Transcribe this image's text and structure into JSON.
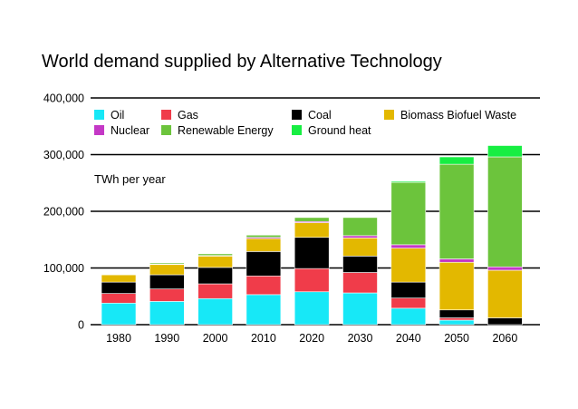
{
  "chart_data": {
    "type": "stacked-bar",
    "title": "World demand supplied by Alternative Technology",
    "unit_label": "TWh per year",
    "xlabel": "",
    "ylabel": "",
    "ylim": [
      0,
      400000
    ],
    "y_ticks": [
      0,
      100000,
      200000,
      300000,
      400000
    ],
    "y_tick_labels": [
      "0",
      "100,000",
      "200,000",
      "300,000",
      "400,000"
    ],
    "categories": [
      "1980",
      "1990",
      "2000",
      "2010",
      "2020",
      "2030",
      "2040",
      "2050",
      "2060"
    ],
    "series": [
      {
        "name": "Oil",
        "color": "#17e8f7",
        "values": [
          38000,
          41000,
          46000,
          53000,
          58000,
          56000,
          29000,
          8000,
          0
        ]
      },
      {
        "name": "Gas",
        "color": "#f03c4a",
        "values": [
          17000,
          22000,
          26000,
          33000,
          41000,
          36000,
          18000,
          4000,
          0
        ]
      },
      {
        "name": "Coal",
        "color": "#000000",
        "values": [
          20000,
          25000,
          29000,
          43000,
          55000,
          29000,
          28000,
          14000,
          12000
        ]
      },
      {
        "name": "Biomass Biofuel Waste",
        "color": "#e3b800",
        "values": [
          13000,
          18000,
          20000,
          23000,
          26000,
          32000,
          60000,
          84000,
          84000
        ]
      },
      {
        "name": "Nuclear",
        "color": "#c438c6",
        "values": [
          500,
          1000,
          1000,
          2000,
          2000,
          4000,
          6000,
          6000,
          6000
        ]
      },
      {
        "name": "Renewable Energy",
        "color": "#6cc43c",
        "values": [
          500,
          2000,
          3000,
          4000,
          7000,
          32000,
          110000,
          167000,
          194000
        ]
      },
      {
        "name": "Ground heat",
        "color": "#17ee42",
        "values": [
          0,
          0,
          0,
          0,
          0,
          0,
          2000,
          13000,
          20000
        ]
      }
    ],
    "legend_position": "top-left",
    "grid": true
  }
}
